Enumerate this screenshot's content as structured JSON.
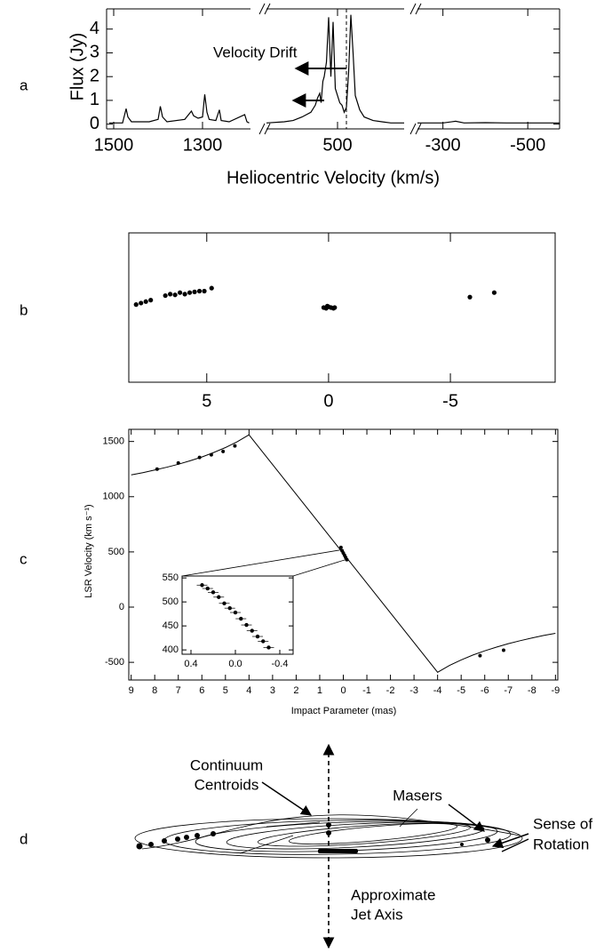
{
  "panel_labels": [
    "a",
    "b",
    "c",
    "d"
  ],
  "chart_data": [
    {
      "type": "line",
      "ylabel": "Flux (Jy)",
      "xlabel": "Heliocentric Velocity (km/s)",
      "annotation": "Velocity Drift",
      "color": "#000000",
      "ylim": [
        -0.2,
        4.85
      ],
      "yticks": [
        0,
        1,
        2,
        3,
        4
      ],
      "vlines": [
        480
      ],
      "segments": [
        {
          "xlim": [
            1516,
            1192
          ],
          "xticks": [
            1500,
            1300
          ],
          "x": [
            1510,
            1480,
            1472,
            1468,
            1460,
            1420,
            1400,
            1395,
            1390,
            1380,
            1340,
            1325,
            1320,
            1310,
            1300,
            1295,
            1290,
            1285,
            1270,
            1262,
            1258,
            1240,
            1205,
            1200,
            1195
          ],
          "values": [
            0.05,
            0.05,
            0.65,
            0.3,
            0.1,
            0.1,
            0.2,
            0.75,
            0.3,
            0.1,
            0.2,
            0.55,
            0.35,
            0.25,
            0.3,
            1.25,
            0.5,
            0.2,
            0.15,
            0.6,
            0.15,
            0.1,
            0.4,
            0.1,
            0.05
          ]
        },
        {
          "xlim": [
            660,
            350
          ],
          "xticks": [
            500
          ],
          "x": [
            660,
            620,
            600,
            580,
            560,
            550,
            545,
            540,
            537,
            533,
            530,
            525,
            520,
            515,
            510,
            505,
            500,
            495,
            490,
            485,
            480,
            475,
            470,
            465,
            460,
            450,
            440,
            420,
            400,
            380,
            350
          ],
          "values": [
            0.05,
            0.1,
            0.15,
            0.3,
            0.5,
            0.8,
            1.1,
            1.3,
            0.9,
            1.8,
            2.0,
            2.6,
            4.5,
            2.0,
            4.3,
            1.5,
            1.2,
            0.9,
            0.8,
            0.5,
            0.7,
            2.2,
            4.6,
            3.0,
            1.2,
            0.6,
            0.3,
            0.15,
            0.1,
            0.05,
            0.05
          ]
        },
        {
          "xlim": [
            -240,
            -575
          ],
          "xticks": [
            -300,
            -500
          ],
          "x": [
            -240,
            -300,
            -330,
            -350,
            -400,
            -450,
            -500,
            -575
          ],
          "values": [
            0.05,
            0.05,
            0.12,
            0.05,
            0.06,
            0.05,
            0.05,
            0.05
          ]
        }
      ]
    },
    {
      "type": "scatter",
      "color": "#000000",
      "xlim": [
        8.2,
        -9.3
      ],
      "xticks": [
        5,
        0,
        -5
      ],
      "ylim": [
        -1,
        1
      ],
      "x": [
        7.9,
        7.7,
        7.5,
        7.3,
        6.7,
        6.5,
        6.3,
        6.1,
        5.9,
        5.7,
        5.5,
        5.3,
        5.1,
        4.8,
        0.2,
        0.1,
        0,
        -0.1,
        -0.2,
        0.05,
        -0.25,
        -5.8,
        -6.8
      ],
      "values": [
        0.04,
        0.06,
        0.08,
        0.1,
        0.16,
        0.18,
        0.17,
        0.2,
        0.18,
        0.2,
        0.21,
        0.22,
        0.22,
        0.26,
        0,
        -0.01,
        0.01,
        0,
        -0.01,
        0.02,
        0,
        0.14,
        0.2
      ]
    },
    {
      "type": "line",
      "ylabel": "LSR Velocity (km s⁻¹)",
      "xlabel": "Impact Parameter (mas)",
      "xlim": [
        9.1,
        -9.1
      ],
      "xticks": [
        9,
        8,
        7,
        6,
        5,
        4,
        3,
        2,
        1,
        0,
        -1,
        -2,
        -3,
        -4,
        -5,
        -6,
        -7,
        -8,
        -9
      ],
      "ylim": [
        -660,
        1610
      ],
      "yticks": [
        -500,
        0,
        500,
        1000,
        1500
      ],
      "series": [
        {
          "style": "line",
          "color": "#000000",
          "x": [
            9,
            8.5,
            8,
            7.5,
            7,
            6.5,
            6,
            5.5,
            5,
            4.5,
            4,
            -4,
            -4.5,
            -5,
            -5.5,
            -6,
            -6.5,
            -7,
            -7.5,
            -8,
            -8.5,
            -9
          ],
          "values": [
            1197,
            1218,
            1241,
            1266,
            1294,
            1325,
            1360,
            1400,
            1445,
            1498,
            1560,
            -590,
            -529,
            -478,
            -434,
            -396,
            -362,
            -331,
            -304,
            -280,
            -257,
            -237
          ]
        },
        {
          "style": "points",
          "color": "#000000",
          "x": [
            7.9,
            7,
            6.1,
            5.6,
            5.1,
            4.6,
            0.1,
            0.05,
            0,
            -0.05,
            -0.1,
            -0.15,
            -5.8,
            -6.8
          ],
          "values": [
            1250,
            1305,
            1355,
            1380,
            1410,
            1460,
            540,
            510,
            490,
            470,
            450,
            430,
            -440,
            -390
          ]
        }
      ],
      "inset": {
        "xlim": [
          0.48,
          -0.52
        ],
        "xticks": [
          0.4,
          {
            "value": 0,
            "label": "0.0"
          },
          -0.4
        ],
        "ylim": [
          391,
          554
        ],
        "yticks": [
          400,
          450,
          500,
          550
        ],
        "color": "#000000",
        "x": [
          0.3,
          0.25,
          0.2,
          0.15,
          0.1,
          0.05,
          0,
          -0.05,
          -0.1,
          -0.15,
          -0.2,
          -0.25,
          -0.3
        ],
        "values": [
          535,
          528,
          520,
          510,
          497,
          487,
          478,
          465,
          452,
          440,
          428,
          418,
          405
        ]
      }
    }
  ],
  "diagram": {
    "annotations": [
      [
        "Continuum",
        "Centroids"
      ],
      [
        "Masers"
      ],
      [
        "Sense of",
        "Rotation"
      ],
      [
        "Approximate",
        "Jet Axis"
      ]
    ]
  }
}
